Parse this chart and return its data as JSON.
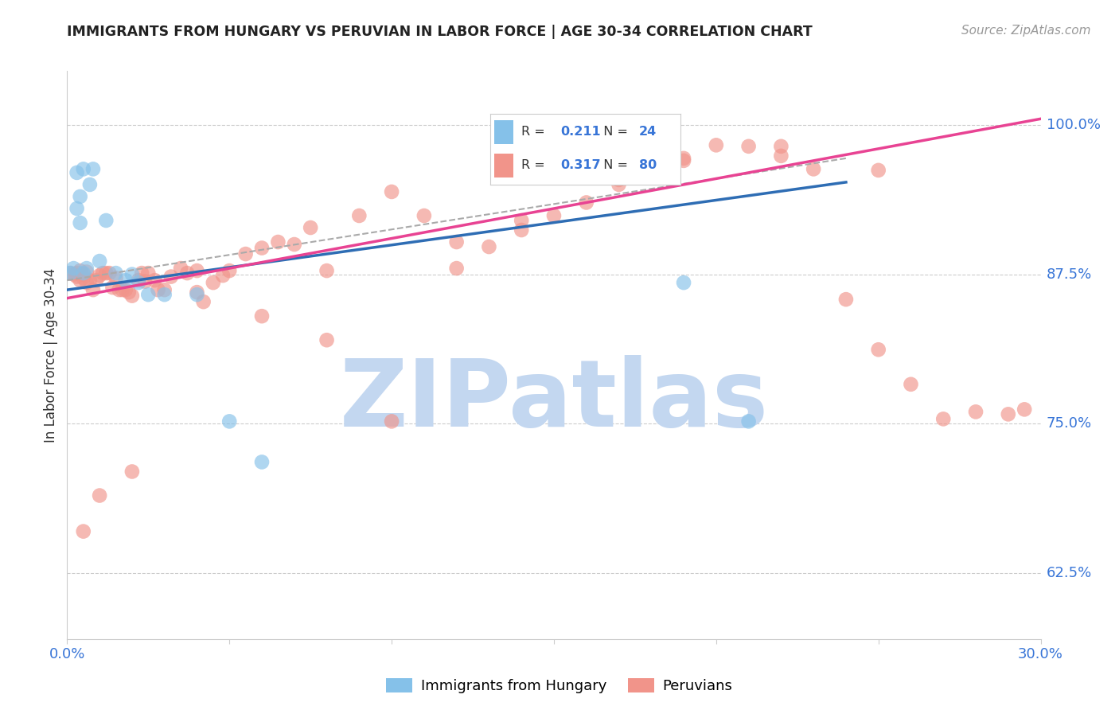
{
  "title": "IMMIGRANTS FROM HUNGARY VS PERUVIAN IN LABOR FORCE | AGE 30-34 CORRELATION CHART",
  "source": "Source: ZipAtlas.com",
  "ylabel": "In Labor Force | Age 30-34",
  "xlim": [
    0.0,
    0.3
  ],
  "ylim": [
    0.57,
    1.045
  ],
  "yticks": [
    0.625,
    0.75,
    0.875,
    1.0
  ],
  "ytick_labels": [
    "62.5%",
    "75.0%",
    "87.5%",
    "100.0%"
  ],
  "xticks": [
    0.0,
    0.05,
    0.1,
    0.15,
    0.2,
    0.25,
    0.3
  ],
  "hungary_R": 0.211,
  "hungary_N": 24,
  "peru_R": 0.317,
  "peru_N": 80,
  "hungary_color": "#85C1E9",
  "peru_color": "#F1948A",
  "hungary_line_color": "#2E6DB4",
  "peru_line_color": "#E84393",
  "dash_color": "#AAAAAA",
  "watermark": "ZIPatlas",
  "watermark_color_r": 195,
  "watermark_color_g": 215,
  "watermark_color_b": 240,
  "legend_blue_label": "Immigrants from Hungary",
  "legend_pink_label": "Peruvians",
  "hungary_x": [
    0.001,
    0.002,
    0.003,
    0.003,
    0.004,
    0.004,
    0.005,
    0.005,
    0.006,
    0.007,
    0.008,
    0.01,
    0.012,
    0.015,
    0.018,
    0.02,
    0.022,
    0.025,
    0.03,
    0.04,
    0.05,
    0.06,
    0.19,
    0.21
  ],
  "hungary_y": [
    0.876,
    0.88,
    0.93,
    0.96,
    0.918,
    0.94,
    0.876,
    0.963,
    0.88,
    0.95,
    0.963,
    0.886,
    0.92,
    0.876,
    0.87,
    0.875,
    0.868,
    0.858,
    0.858,
    0.858,
    0.752,
    0.718,
    0.868,
    0.752
  ],
  "peru_x": [
    0.001,
    0.002,
    0.003,
    0.003,
    0.004,
    0.004,
    0.005,
    0.005,
    0.006,
    0.006,
    0.007,
    0.008,
    0.009,
    0.01,
    0.011,
    0.012,
    0.013,
    0.014,
    0.015,
    0.016,
    0.017,
    0.018,
    0.019,
    0.02,
    0.022,
    0.023,
    0.024,
    0.025,
    0.027,
    0.028,
    0.03,
    0.032,
    0.035,
    0.037,
    0.04,
    0.042,
    0.045,
    0.048,
    0.05,
    0.055,
    0.06,
    0.065,
    0.07,
    0.075,
    0.08,
    0.09,
    0.1,
    0.11,
    0.12,
    0.13,
    0.14,
    0.15,
    0.16,
    0.17,
    0.18,
    0.19,
    0.2,
    0.21,
    0.22,
    0.23,
    0.24,
    0.25,
    0.26,
    0.27,
    0.28,
    0.29,
    0.295,
    0.25,
    0.22,
    0.19,
    0.17,
    0.14,
    0.12,
    0.1,
    0.08,
    0.06,
    0.04,
    0.02,
    0.01,
    0.005
  ],
  "peru_y": [
    0.876,
    0.875,
    0.876,
    0.873,
    0.878,
    0.87,
    0.875,
    0.872,
    0.877,
    0.868,
    0.87,
    0.862,
    0.87,
    0.874,
    0.876,
    0.876,
    0.876,
    0.864,
    0.872,
    0.862,
    0.862,
    0.862,
    0.86,
    0.857,
    0.87,
    0.876,
    0.869,
    0.876,
    0.87,
    0.862,
    0.862,
    0.873,
    0.88,
    0.876,
    0.878,
    0.852,
    0.868,
    0.874,
    0.878,
    0.892,
    0.897,
    0.902,
    0.9,
    0.914,
    0.878,
    0.924,
    0.944,
    0.924,
    0.902,
    0.898,
    0.912,
    0.924,
    0.935,
    0.95,
    0.962,
    0.972,
    0.983,
    0.982,
    0.974,
    0.963,
    0.854,
    0.812,
    0.783,
    0.754,
    0.76,
    0.758,
    0.762,
    0.962,
    0.982,
    0.97,
    0.954,
    0.92,
    0.88,
    0.752,
    0.82,
    0.84,
    0.86,
    0.71,
    0.69,
    0.66
  ],
  "blue_line_x0": 0.0,
  "blue_line_x1": 0.24,
  "blue_line_y0": 0.862,
  "blue_line_y1": 0.952,
  "pink_line_x0": 0.0,
  "pink_line_x1": 0.3,
  "pink_line_y0": 0.855,
  "pink_line_y1": 1.005,
  "dash_line_x0": 0.0,
  "dash_line_x1": 0.24,
  "dash_line_y0": 0.87,
  "dash_line_y1": 0.972
}
